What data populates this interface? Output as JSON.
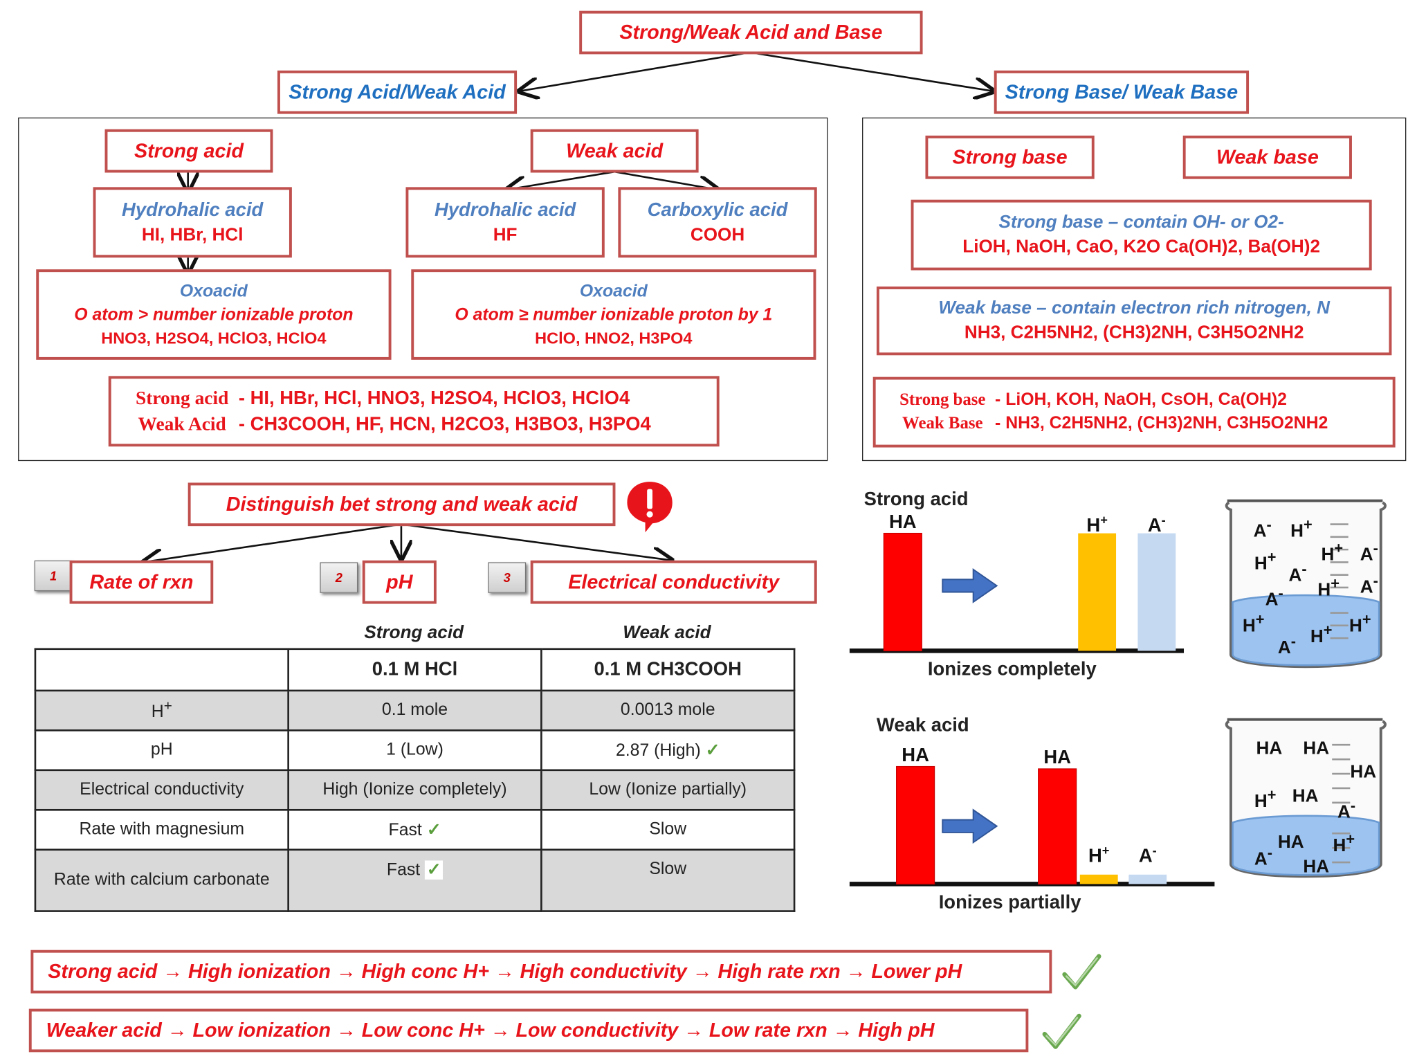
{
  "title": "Strong/Weak Acid and Base",
  "acid_branch": "Strong Acid/Weak Acid",
  "base_branch": "Strong Base/ Weak Base",
  "acid_panel": {
    "strong_acid": "Strong acid",
    "weak_acid": "Weak acid",
    "hydrohalic_strong_title": "Hydrohalic acid",
    "hydrohalic_strong_examples": "HI, HBr, HCl",
    "hydrohalic_weak_title": "Hydrohalic acid",
    "hydrohalic_weak_examples": "HF",
    "carboxylic_title": "Carboxylic acid",
    "carboxylic_examples": "COOH",
    "oxo_strong_title": "Oxoacid",
    "oxo_strong_rule": "O atom > number ionizable proton",
    "oxo_strong_examples": "HNO3, H2SO4, HClO3, HClO4",
    "oxo_weak_title": "Oxoacid",
    "oxo_weak_rule": "O atom ≥ number ionizable proton by 1",
    "oxo_weak_examples": "HClO, HNO2, H3PO4",
    "summary_strong_label": "Strong acid",
    "summary_strong_list": "- HI, HBr, HCl, HNO3, H2SO4, HClO3, HClO4",
    "summary_weak_label": "Weak Acid",
    "summary_weak_list": "- CH3COOH, HF, HCN, H2CO3, H3BO3, H3PO4"
  },
  "base_panel": {
    "strong_base": "Strong base",
    "weak_base": "Weak base",
    "strong_base_rule": "Strong base – contain OH- or O2-",
    "strong_base_examples": "LiOH, NaOH, CaO, K2O Ca(OH)2, Ba(OH)2",
    "weak_base_rule": "Weak base – contain electron rich nitrogen, N",
    "weak_base_examples": "NH3, C2H5NH2, (CH3)2NH, C3H5O2NH2",
    "summary_strong_label": "Strong base",
    "summary_strong_list": "- LiOH, KOH, NaOH, CsOH, Ca(OH)2",
    "summary_weak_label": "Weak Base",
    "summary_weak_list": "- NH3, C2H5NH2, (CH3)2NH, C3H5O2NH2"
  },
  "distinguish": {
    "title": "Distinguish bet strong and weak acid",
    "items": [
      {
        "num": "1",
        "label": "Rate of rxn"
      },
      {
        "num": "2",
        "label": "pH"
      },
      {
        "num": "3",
        "label": "Electrical conductivity"
      }
    ]
  },
  "table": {
    "col_strong": "Strong acid",
    "col_weak": "Weak acid",
    "head_strong": "0.1 M HCl",
    "head_weak": "0.1 M CH3COOH",
    "rows": [
      {
        "label": "H+",
        "strong": "0.1 mole",
        "weak": "0.0013 mole"
      },
      {
        "label": "pH",
        "strong": "1 (Low)",
        "weak": "2.87 (High)"
      },
      {
        "label": "Electrical conductivity",
        "strong": "High (Ionize completely)",
        "weak": "Low (Ionize partially)"
      },
      {
        "label": "Rate with magnesium",
        "strong": "Fast",
        "weak": "Slow"
      },
      {
        "label": "Rate with calcium carbonate",
        "strong": "Fast",
        "weak": "Slow"
      }
    ]
  },
  "charts": [
    {
      "title": "Strong acid",
      "caption": "Ionizes completely",
      "chart_data": {
        "type": "bar",
        "categories": [
          "HA",
          "H+",
          "A-"
        ],
        "before": [
          1.0
        ],
        "after": [
          0,
          1.0,
          1.0
        ],
        "colors": [
          "#ff0000",
          "#ffc000",
          "#c5d9f1"
        ]
      }
    },
    {
      "title": "Weak acid",
      "caption": "Ionizes partially",
      "chart_data": {
        "type": "bar",
        "categories": [
          "HA",
          "H+",
          "A-"
        ],
        "before": [
          1.0
        ],
        "after": [
          0.98,
          0.08,
          0.08
        ],
        "colors": [
          "#ff0000",
          "#ffc000",
          "#c5d9f1"
        ]
      }
    }
  ],
  "conclusions": {
    "strong": "Strong acid → High ionization → High conc H+ → High conductivity → High rate rxn → Lower pH",
    "weak": "Weaker acid → Low ionization → Low conc H+ → Low conductivity → Low rate rxn → High pH"
  },
  "colors": {
    "box_border": "#c0504d",
    "red_text": "#e8141b",
    "blue_text": "#1f6fc0",
    "arrow": "#4472c4"
  }
}
